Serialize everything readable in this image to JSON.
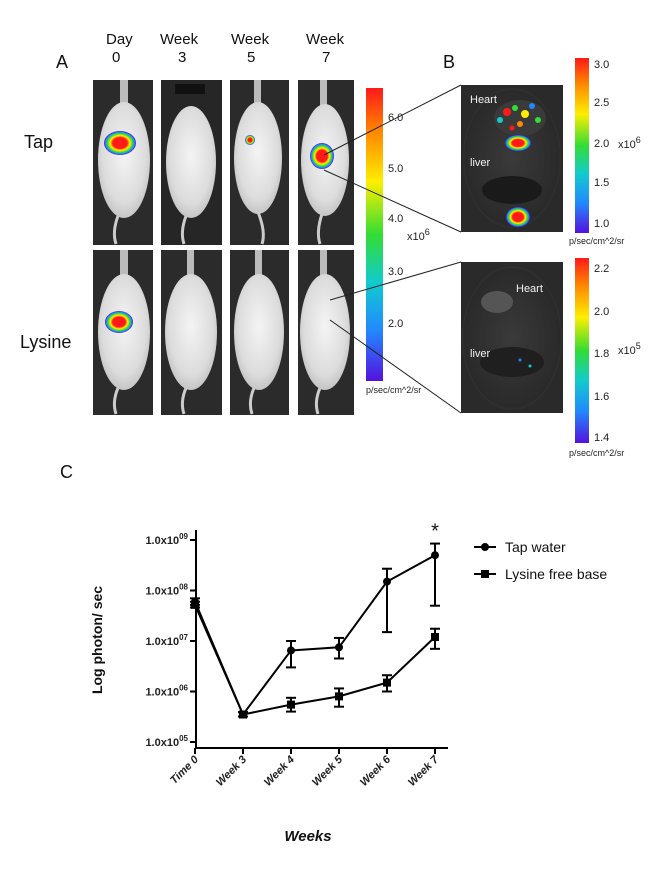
{
  "panels": {
    "a_letter": "A",
    "b_letter": "B",
    "c_letter": "C"
  },
  "columns": [
    {
      "line1": "Day",
      "line2": "0"
    },
    {
      "line1": "Week",
      "line2": "3"
    },
    {
      "line1": "Week",
      "line2": "5"
    },
    {
      "line1": "Week",
      "line2": "7"
    }
  ],
  "rows": {
    "tap": "Tap",
    "lysine": "Lysine"
  },
  "colorbar_main": {
    "ticks": [
      "6.0",
      "5.0",
      "4.0",
      "3.0",
      "2.0"
    ],
    "exponent_base": "x10",
    "exponent": "6",
    "unit": "p/sec/cm^2/sr"
  },
  "panel_b": {
    "tap": {
      "heart": "Heart",
      "liver": "liver"
    },
    "lysine": {
      "heart": "Heart",
      "liver": "liver"
    },
    "colorbar_top": {
      "ticks": [
        "3.0",
        "2.5",
        "2.0",
        "1.5",
        "1.0"
      ],
      "exponent_base": "x10",
      "exponent": "6",
      "unit": "p/sec/cm^2/sr"
    },
    "colorbar_bottom": {
      "ticks": [
        "2.2",
        "2.0",
        "1.8",
        "1.6",
        "1.4"
      ],
      "exponent_base": "x10",
      "exponent": "5",
      "unit": "p/sec/cm^2/sr"
    }
  },
  "colors": {
    "scale": [
      "#ff1a1a",
      "#ff8800",
      "#ffee00",
      "#33dd33",
      "#11cccc",
      "#2288ff",
      "#5511dd"
    ],
    "axis": "#000000",
    "photo_bg": "#2b2b2b"
  },
  "chart_data": {
    "type": "line",
    "xlabel": "Weeks",
    "ylabel": "Log photon/ sec",
    "categories": [
      "Time 0",
      "Week 3",
      "Week 4",
      "Week 5",
      "Week 6",
      "Week 7"
    ],
    "y_scale": "log",
    "ylim": [
      100000,
      1000000000
    ],
    "yticks": [
      {
        "value": 100000,
        "label": "1.0x10",
        "exp": "05"
      },
      {
        "value": 1000000,
        "label": "1.0x10",
        "exp": "06"
      },
      {
        "value": 10000000,
        "label": "1.0x10",
        "exp": "07"
      },
      {
        "value": 100000000,
        "label": "1.0x10",
        "exp": "08"
      },
      {
        "value": 1000000000,
        "label": "1.0x10",
        "exp": "09"
      }
    ],
    "legend_position": "right",
    "series": [
      {
        "name": "Tap water",
        "marker": "circle",
        "values": [
          60000000,
          350000,
          6500000,
          7500000,
          150000000,
          500000000
        ],
        "err_low": [
          52000000,
          320000,
          3000000,
          4500000,
          15000000,
          50000000
        ],
        "err_high": [
          70000000,
          390000,
          10000000,
          11500000,
          270000000,
          850000000
        ]
      },
      {
        "name": "Lysine free base",
        "marker": "square",
        "values": [
          52000000,
          350000,
          550000,
          800000,
          1500000,
          12000000
        ],
        "err_low": [
          46000000,
          320000,
          400000,
          500000,
          1000000,
          7000000
        ],
        "err_high": [
          60000000,
          390000,
          750000,
          1150000,
          2100000,
          17500000
        ]
      }
    ],
    "annotations": [
      {
        "text": "*",
        "category": "Week 7"
      }
    ]
  }
}
